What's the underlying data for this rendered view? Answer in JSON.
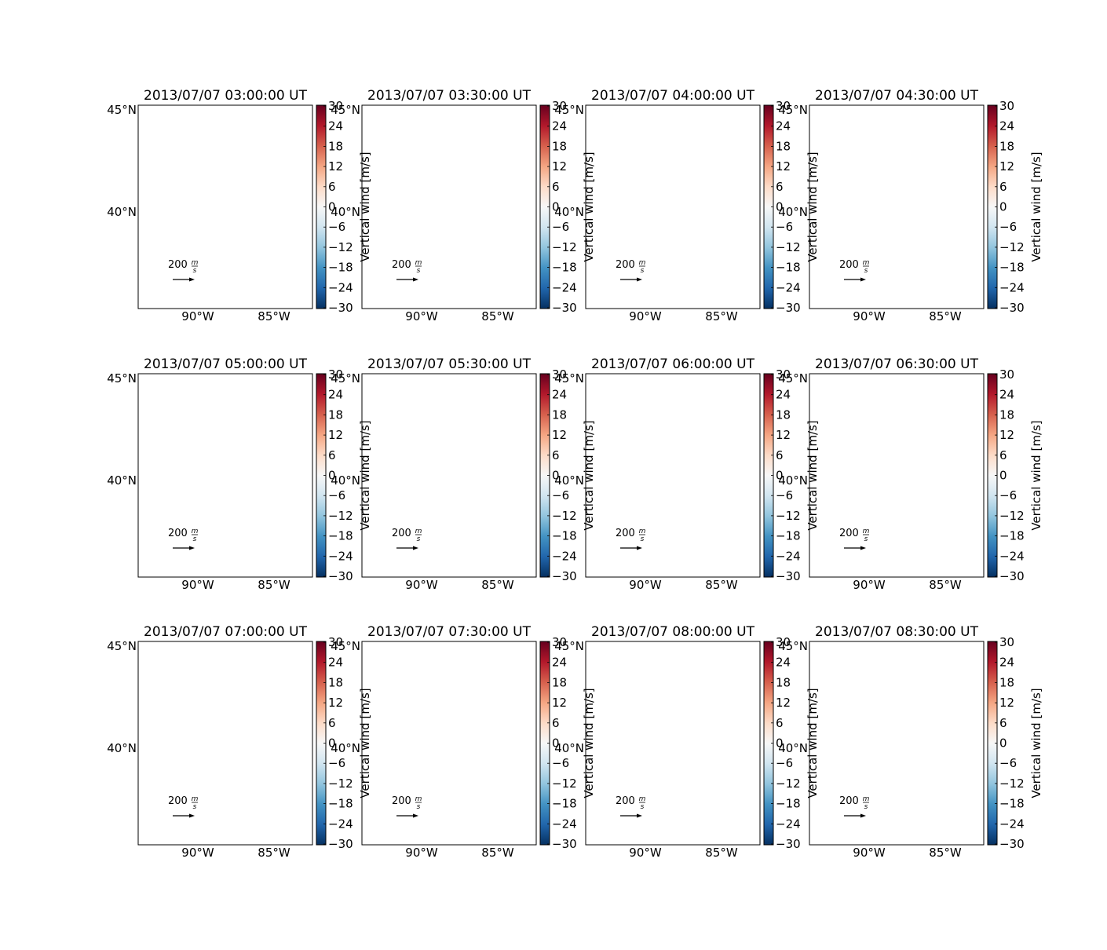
{
  "figure": {
    "panels": [
      {
        "title": "2013/07/07 03:00:00 UT"
      },
      {
        "title": "2013/07/07 03:30:00 UT"
      },
      {
        "title": "2013/07/07 04:00:00 UT"
      },
      {
        "title": "2013/07/07 04:30:00 UT"
      },
      {
        "title": "2013/07/07 05:00:00 UT"
      },
      {
        "title": "2013/07/07 05:30:00 UT"
      },
      {
        "title": "2013/07/07 06:00:00 UT"
      },
      {
        "title": "2013/07/07 06:30:00 UT"
      },
      {
        "title": "2013/07/07 07:00:00 UT"
      },
      {
        "title": "2013/07/07 07:30:00 UT"
      },
      {
        "title": "2013/07/07 08:00:00 UT"
      },
      {
        "title": "2013/07/07 08:30:00 UT"
      }
    ],
    "lon_ticks": [
      "90°W",
      "85°W"
    ],
    "lat_ticks": [
      "45°N",
      "40°N"
    ],
    "colorbar": {
      "label": "Vertical wind [m/s]",
      "ticks": [
        "30",
        "24",
        "18",
        "12",
        "6",
        "0",
        "−6",
        "−12",
        "−18",
        "−24",
        "−30"
      ],
      "colormap": "RdBu_r",
      "range": [
        -30,
        30
      ],
      "colors": [
        "#053061",
        "#2166ac",
        "#4393c3",
        "#92c5de",
        "#d1e5f0",
        "#f7f7f7",
        "#fddbc7",
        "#f4a582",
        "#d6604d",
        "#b2182b",
        "#67001f"
      ]
    },
    "quiver_key": {
      "value": "200",
      "unit_num": "m",
      "unit_den": "s"
    },
    "line_color": "#000000"
  }
}
